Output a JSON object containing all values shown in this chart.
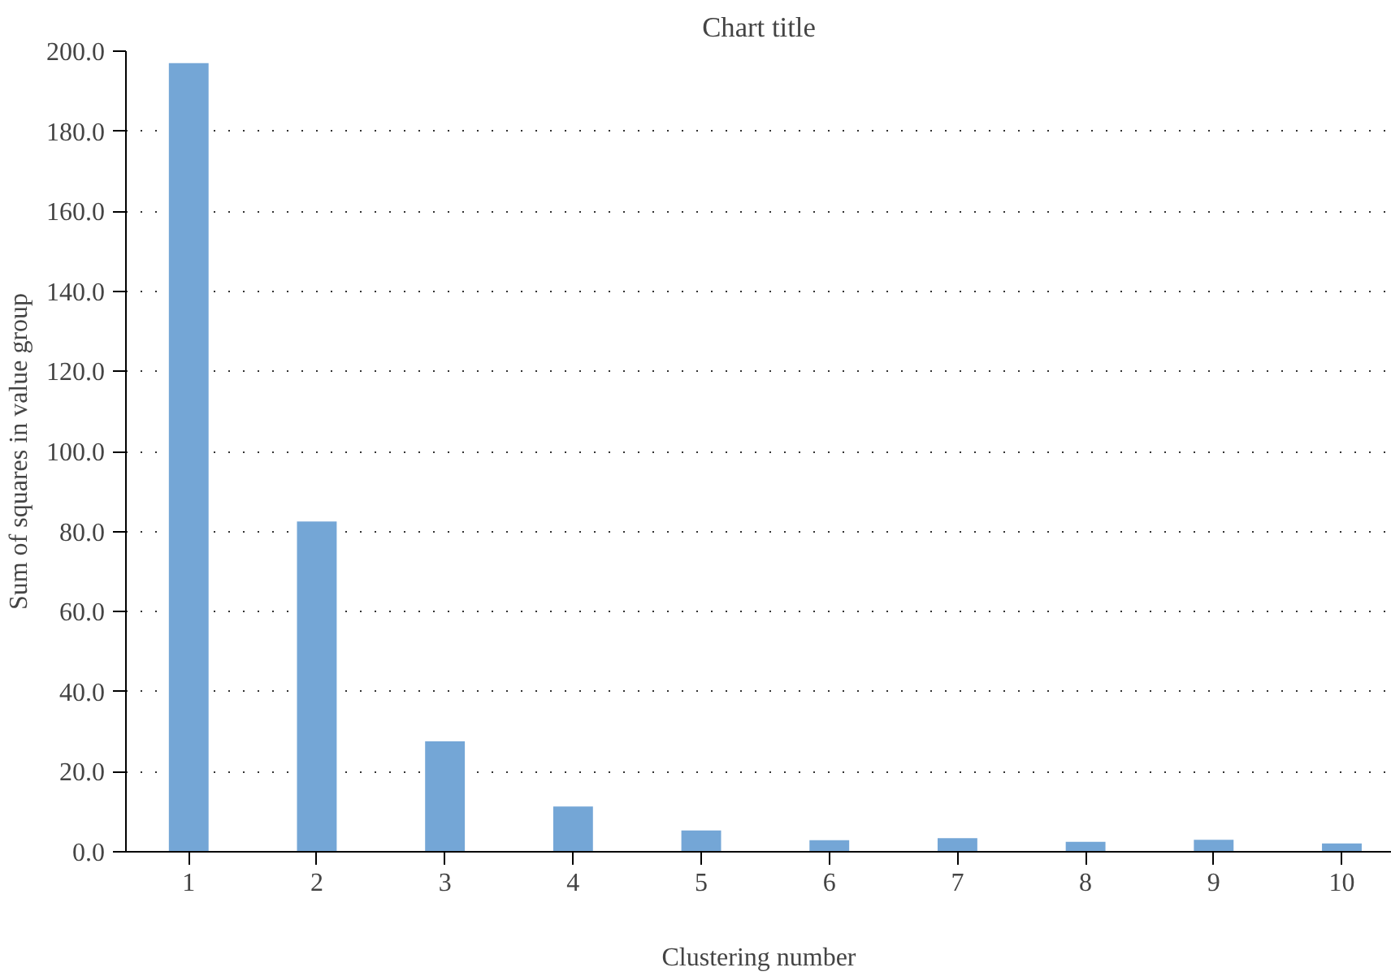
{
  "chart_data": {
    "type": "bar",
    "title": "Chart title",
    "xlabel": "Clustering number",
    "ylabel": "Sum of squares in value group",
    "categories": [
      "1",
      "2",
      "3",
      "4",
      "5",
      "6",
      "7",
      "8",
      "9",
      "10"
    ],
    "values": [
      197,
      82.5,
      27.6,
      11.3,
      5.3,
      2.9,
      3.4,
      2.5,
      3.0,
      2.1
    ],
    "color": "#74a6d6",
    "ylim": [
      0,
      200
    ],
    "yticks": [
      {
        "value": 0,
        "label": "0.0"
      },
      {
        "value": 20,
        "label": "20.0"
      },
      {
        "value": 40,
        "label": "40.0"
      },
      {
        "value": 60,
        "label": "60.0"
      },
      {
        "value": 80,
        "label": "80.0"
      },
      {
        "value": 100,
        "label": "100.0"
      },
      {
        "value": 120,
        "label": "120.0"
      },
      {
        "value": 140,
        "label": "140.0"
      },
      {
        "value": 160,
        "label": "160.0"
      },
      {
        "value": 180,
        "label": "180.0"
      },
      {
        "value": 200,
        "label": "200.0"
      }
    ],
    "grid": "y"
  }
}
